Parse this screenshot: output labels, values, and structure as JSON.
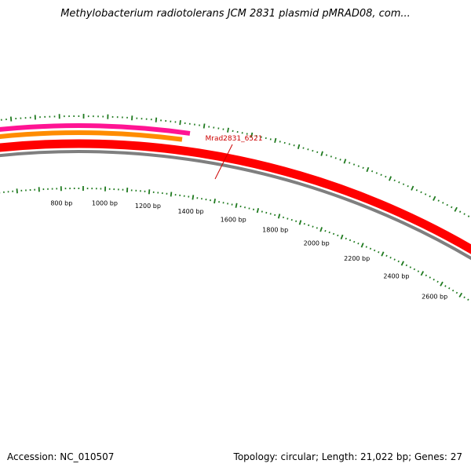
{
  "title": "Methylobacterium radiotolerans JCM 2831 plasmid pMRAD08, com...",
  "footer": {
    "accession": "Accession: NC_010507",
    "summary": "Topology: circular; Length: 21,022 bp; Genes: 27"
  },
  "diagram": {
    "topology": "circular",
    "genome_length_bp": 21022,
    "ruler_labels": [
      {
        "bp": 800,
        "text": "800 bp"
      },
      {
        "bp": 1000,
        "text": "1000 bp"
      },
      {
        "bp": 1200,
        "text": "1200 bp"
      },
      {
        "bp": 1400,
        "text": "1400 bp"
      },
      {
        "bp": 1600,
        "text": "1600 bp"
      },
      {
        "bp": 1800,
        "text": "1800 bp"
      },
      {
        "bp": 2000,
        "text": "2000 bp"
      },
      {
        "bp": 2200,
        "text": "2200 bp"
      },
      {
        "bp": 2400,
        "text": "2400 bp"
      },
      {
        "bp": 2600,
        "text": "2600 bp"
      }
    ],
    "gene_label": {
      "text": "Mrad2831_6521",
      "color": "#cc0000"
    },
    "colors": {
      "backbone": "#7f7f7f",
      "cds_strand": "#ff0000",
      "gene_orange": "#ff8c00",
      "gene_pink": "#ff1493",
      "ticks": "#1f7a1f"
    }
  }
}
